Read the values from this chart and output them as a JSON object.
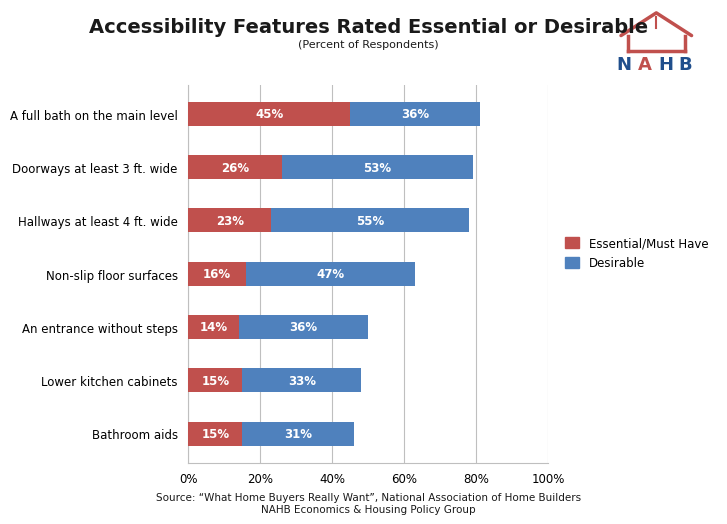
{
  "title": "Accessibility Features Rated Essential or Desirable",
  "subtitle": "(Percent of Respondents)",
  "categories": [
    "A full bath on the main level",
    "Doorways at least 3 ft. wide",
    "Hallways at least 4 ft. wide",
    "Non-slip floor surfaces",
    "An entrance without steps",
    "Lower kitchen cabinets",
    "Bathroom aids"
  ],
  "essential": [
    45,
    26,
    23,
    16,
    14,
    15,
    15
  ],
  "desirable": [
    36,
    53,
    55,
    47,
    36,
    33,
    31
  ],
  "essential_color": "#C0504D",
  "desirable_color": "#4F81BD",
  "bar_height": 0.45,
  "xlim": [
    0,
    100
  ],
  "xticks": [
    0,
    20,
    40,
    60,
    80,
    100
  ],
  "xtick_labels": [
    "0%",
    "20%",
    "40%",
    "60%",
    "80%",
    "100%"
  ],
  "source_line1": "Source: “What Home Buyers Really Want”, National Association of Home Builders",
  "source_line2": "NAHB Economics & Housing Policy Group",
  "legend_essential": "Essential/Must Have",
  "legend_desirable": "Desirable",
  "bg_color": "#FFFFFF",
  "grid_color": "#BFBFBF",
  "label_fontsize": 8.5,
  "bar_label_fontsize": 8.5,
  "title_fontsize": 14,
  "subtitle_fontsize": 8,
  "source_fontsize": 7.5,
  "ytick_fontsize": 8.5,
  "xtick_fontsize": 8.5
}
